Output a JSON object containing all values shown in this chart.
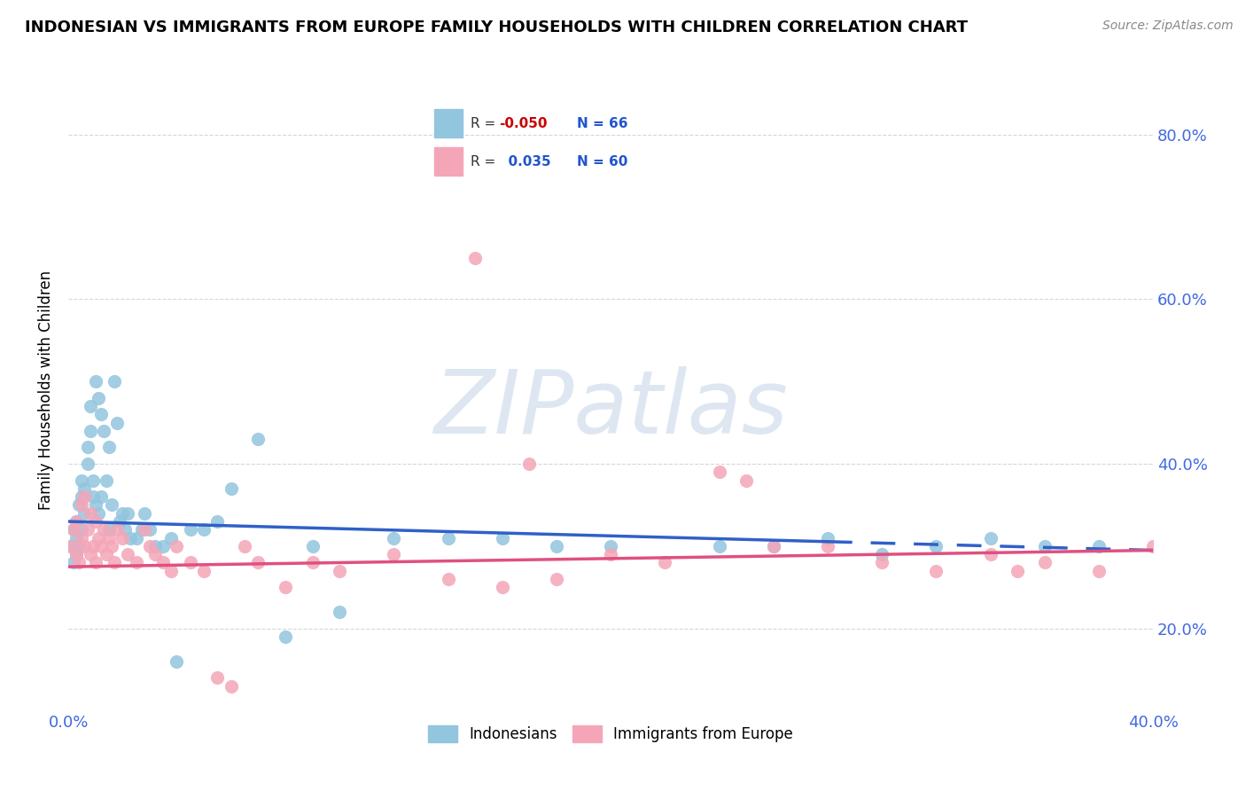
{
  "title": "INDONESIAN VS IMMIGRANTS FROM EUROPE FAMILY HOUSEHOLDS WITH CHILDREN CORRELATION CHART",
  "source": "Source: ZipAtlas.com",
  "ylabel": "Family Households with Children",
  "ytick_values": [
    0.2,
    0.4,
    0.6,
    0.8
  ],
  "xlim": [
    0.0,
    0.4
  ],
  "ylim": [
    0.1,
    0.88
  ],
  "r1": "-0.050",
  "n1": "66",
  "r2": "0.035",
  "n2": "60",
  "color_blue": "#92c5de",
  "color_pink": "#f4a6b8",
  "trend_blue": "#3060c8",
  "trend_pink": "#e05080",
  "watermark": "ZIPatlas",
  "legend1": "Indonesians",
  "legend2": "Immigrants from Europe",
  "indonesian_x": [
    0.001,
    0.002,
    0.002,
    0.003,
    0.003,
    0.003,
    0.004,
    0.004,
    0.005,
    0.005,
    0.005,
    0.006,
    0.006,
    0.007,
    0.007,
    0.008,
    0.008,
    0.009,
    0.009,
    0.01,
    0.01,
    0.011,
    0.011,
    0.012,
    0.012,
    0.013,
    0.014,
    0.015,
    0.015,
    0.016,
    0.017,
    0.018,
    0.019,
    0.02,
    0.021,
    0.022,
    0.023,
    0.025,
    0.027,
    0.028,
    0.03,
    0.032,
    0.035,
    0.038,
    0.04,
    0.045,
    0.05,
    0.055,
    0.06,
    0.07,
    0.08,
    0.09,
    0.1,
    0.12,
    0.14,
    0.16,
    0.18,
    0.2,
    0.24,
    0.26,
    0.28,
    0.3,
    0.32,
    0.34,
    0.36,
    0.38
  ],
  "indonesian_y": [
    0.3,
    0.32,
    0.28,
    0.31,
    0.29,
    0.33,
    0.3,
    0.35,
    0.38,
    0.32,
    0.36,
    0.37,
    0.34,
    0.42,
    0.4,
    0.44,
    0.47,
    0.38,
    0.36,
    0.35,
    0.5,
    0.48,
    0.34,
    0.46,
    0.36,
    0.44,
    0.38,
    0.42,
    0.32,
    0.35,
    0.5,
    0.45,
    0.33,
    0.34,
    0.32,
    0.34,
    0.31,
    0.31,
    0.32,
    0.34,
    0.32,
    0.3,
    0.3,
    0.31,
    0.16,
    0.32,
    0.32,
    0.33,
    0.37,
    0.43,
    0.19,
    0.3,
    0.22,
    0.31,
    0.31,
    0.31,
    0.3,
    0.3,
    0.3,
    0.3,
    0.31,
    0.29,
    0.3,
    0.31,
    0.3,
    0.3
  ],
  "europe_x": [
    0.001,
    0.002,
    0.003,
    0.003,
    0.004,
    0.005,
    0.005,
    0.006,
    0.006,
    0.007,
    0.008,
    0.008,
    0.009,
    0.01,
    0.01,
    0.011,
    0.012,
    0.013,
    0.014,
    0.015,
    0.016,
    0.017,
    0.018,
    0.02,
    0.022,
    0.025,
    0.028,
    0.03,
    0.032,
    0.035,
    0.038,
    0.04,
    0.045,
    0.05,
    0.055,
    0.06,
    0.065,
    0.07,
    0.08,
    0.09,
    0.1,
    0.12,
    0.14,
    0.16,
    0.18,
    0.2,
    0.22,
    0.24,
    0.26,
    0.28,
    0.3,
    0.32,
    0.34,
    0.36,
    0.38,
    0.4,
    0.15,
    0.17,
    0.25,
    0.35
  ],
  "europe_y": [
    0.3,
    0.32,
    0.29,
    0.33,
    0.28,
    0.31,
    0.35,
    0.3,
    0.36,
    0.32,
    0.29,
    0.34,
    0.3,
    0.28,
    0.33,
    0.31,
    0.3,
    0.32,
    0.29,
    0.31,
    0.3,
    0.28,
    0.32,
    0.31,
    0.29,
    0.28,
    0.32,
    0.3,
    0.29,
    0.28,
    0.27,
    0.3,
    0.28,
    0.27,
    0.14,
    0.13,
    0.3,
    0.28,
    0.25,
    0.28,
    0.27,
    0.29,
    0.26,
    0.25,
    0.26,
    0.29,
    0.28,
    0.39,
    0.3,
    0.3,
    0.28,
    0.27,
    0.29,
    0.28,
    0.27,
    0.3,
    0.65,
    0.4,
    0.38,
    0.27
  ]
}
